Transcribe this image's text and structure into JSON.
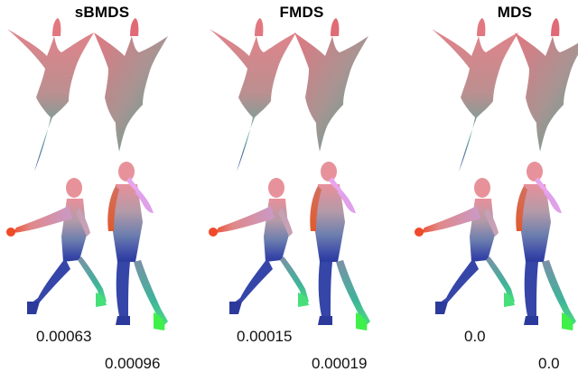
{
  "methods": [
    {
      "title": "sBMDS",
      "error_a": "0.00063",
      "error_b": "0.00096"
    },
    {
      "title": "FMDS",
      "error_a": "0.00015",
      "error_b": "0.00019"
    },
    {
      "title": "MDS",
      "error_a": "0.0",
      "error_b": "0.0"
    }
  ]
}
